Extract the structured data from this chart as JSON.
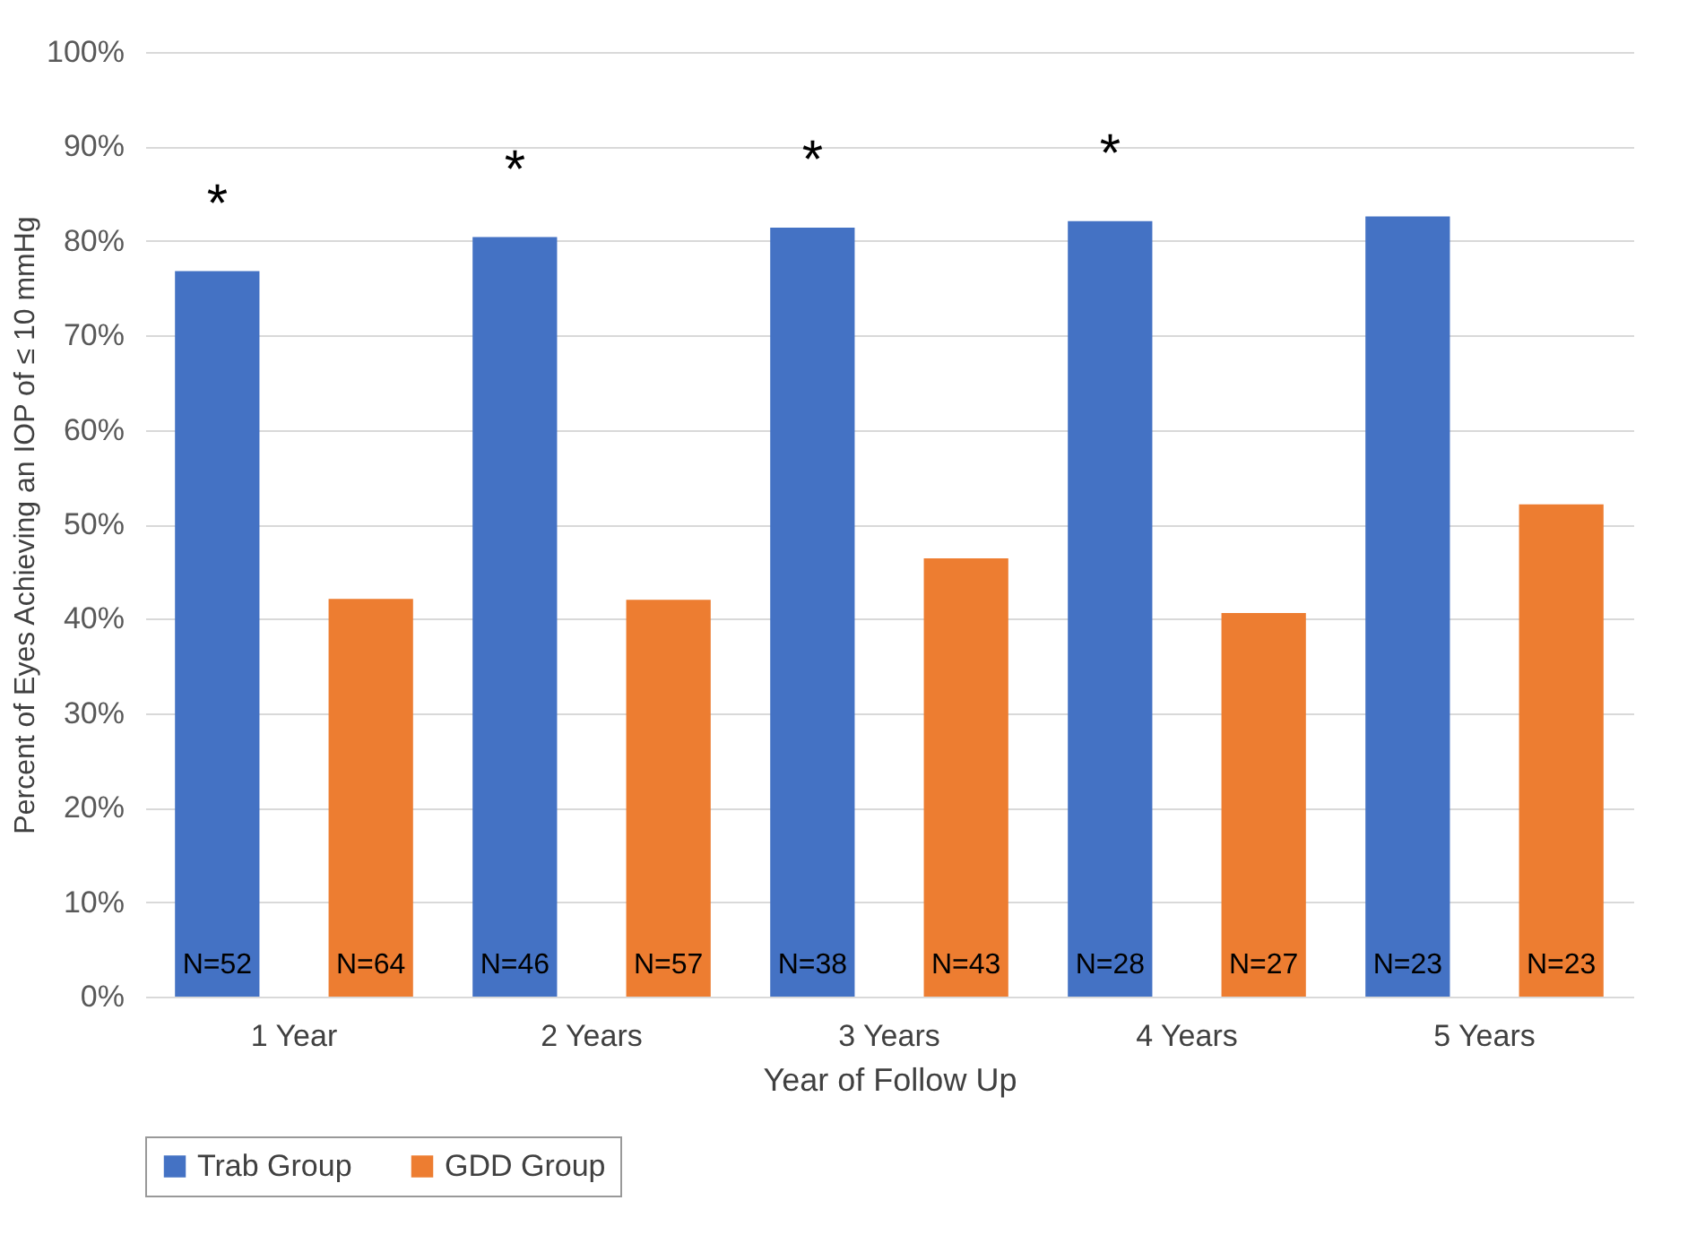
{
  "chart_data": {
    "type": "bar",
    "xlabel": "Year of Follow Up",
    "ylabel": "Percent of Eyes Achieving an IOP of ≤ 10 mmHg",
    "categories": [
      "1 Year",
      "2 Years",
      "3 Years",
      "4 Years",
      "5 Years"
    ],
    "series": [
      {
        "name": "Trab Group",
        "color": "#4472c4",
        "values": [
          76.8,
          80.4,
          81.4,
          82.1,
          82.6
        ]
      },
      {
        "name": "GDD Group",
        "color": "#ed7d31",
        "values": [
          42.1,
          42.0,
          46.4,
          40.6,
          52.1
        ]
      }
    ],
    "ylim": [
      0,
      100
    ],
    "yticks": [
      {
        "value": 0,
        "label": "0%"
      },
      {
        "value": 10,
        "label": "10%"
      },
      {
        "value": 20,
        "label": "20%"
      },
      {
        "value": 30,
        "label": "30%"
      },
      {
        "value": 40,
        "label": "40%"
      },
      {
        "value": 50,
        "label": "50%"
      },
      {
        "value": 60,
        "label": "60%"
      },
      {
        "value": 70,
        "label": "70%"
      },
      {
        "value": 80,
        "label": "80%"
      },
      {
        "value": 90,
        "label": "90%"
      },
      {
        "value": 100,
        "label": "100%"
      }
    ],
    "grid": "y",
    "legend": "bottom",
    "annotations": [
      "N=52",
      "N=64",
      "N=46",
      "N=57",
      "N=38",
      "N=43",
      "N=28",
      "N=27",
      "N=23",
      "N=23",
      "*",
      "*",
      "*",
      "*"
    ]
  }
}
